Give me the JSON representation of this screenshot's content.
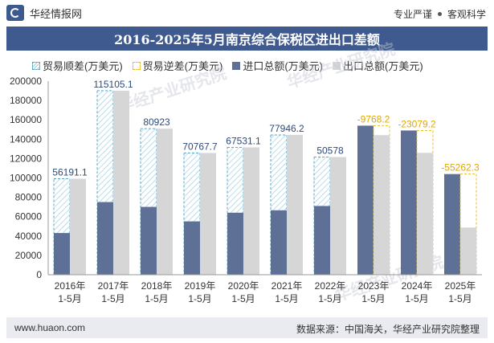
{
  "header": {
    "brand": "华经情报网",
    "tagline_left": "专业严谨",
    "tagline_right": "客观科学",
    "title": "2016-2025年5月南京综合保税区进出口差额"
  },
  "legend": {
    "surplus": "贸易顺差(万美元)",
    "deficit": "贸易逆差(万美元)",
    "import": "进口总额(万美元)",
    "export": "出口总额(万美元)"
  },
  "watermark": "华经产业研究院",
  "footer": {
    "url": "www.huaon.com",
    "source": "数据来源：中国海关，华经产业研究院整理"
  },
  "colors": {
    "import": "#5f7097",
    "export": "#d6d6d6",
    "surplus_stroke": "#5aa8c8",
    "deficit_stroke": "#e8c12a",
    "title_bg": "#3e5a8e",
    "deficit_label": "#e0a800",
    "surplus_label": "#2f4a7a"
  },
  "chart_data": {
    "type": "bar",
    "title": "2016-2025年5月南京综合保税区进出口差额",
    "categories": [
      [
        "2016年",
        "1-5月"
      ],
      [
        "2017年",
        "1-5月"
      ],
      [
        "2018年",
        "1-5月"
      ],
      [
        "2019年",
        "1-5月"
      ],
      [
        "2020年",
        "1-5月"
      ],
      [
        "2021年",
        "1-5月"
      ],
      [
        "2022年",
        "1-5月"
      ],
      [
        "2023年",
        "1-5月"
      ],
      [
        "2024年",
        "1-5月"
      ],
      [
        "2025年",
        "1-5月"
      ]
    ],
    "series": [
      {
        "name": "进口总额(万美元)",
        "values": [
          43000,
          75000,
          70000,
          55000,
          64000,
          66500,
          71000,
          154000,
          149000,
          104000
        ]
      },
      {
        "name": "出口总额(万美元)",
        "values": [
          99191.1,
          190105.1,
          150923,
          125767.7,
          131531.1,
          144446.2,
          121578,
          144231.8,
          125920.8,
          48737.7
        ]
      }
    ],
    "balance": {
      "surplus_name": "贸易顺差(万美元)",
      "deficit_name": "贸易逆差(万美元)",
      "values": [
        56191.1,
        115105.1,
        80923,
        70767.7,
        67531.1,
        77946.2,
        50578,
        -9768.2,
        -23079.2,
        -55262.3
      ],
      "labels": [
        "56191.1",
        "115105.1",
        "80923",
        "70767.7",
        "67531.1",
        "77946.2",
        "50578",
        "-9768.2",
        "-23079.2",
        "-55262.3"
      ]
    },
    "ylim": [
      0,
      200000
    ],
    "yticks": [
      0,
      20000,
      40000,
      60000,
      80000,
      100000,
      120000,
      140000,
      160000,
      180000,
      200000
    ],
    "grid": false,
    "legend_position": "top"
  }
}
